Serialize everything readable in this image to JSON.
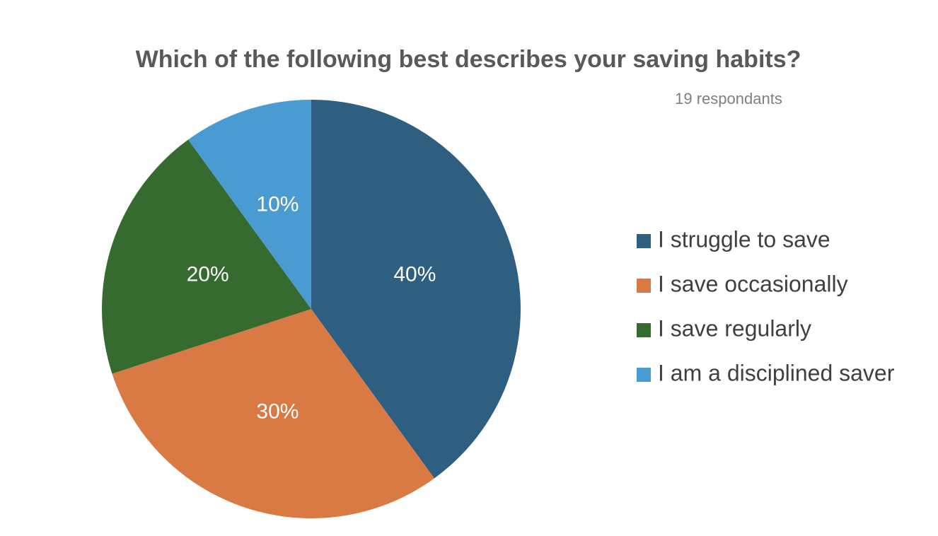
{
  "chart_data": {
    "type": "pie",
    "title": "Which of the following best describes your saving habits?",
    "subtitle": "19 respondants",
    "categories": [
      "I struggle to save",
      "I save occasionally",
      "I save regularly",
      "I am a disciplined saver"
    ],
    "values": [
      40,
      30,
      20,
      10
    ],
    "value_labels": [
      "40%",
      "30%",
      "20%",
      "10%"
    ],
    "colors": [
      "#2e5f80",
      "#d97a44",
      "#356b2f",
      "#4a9bd1"
    ],
    "legend": "right"
  }
}
